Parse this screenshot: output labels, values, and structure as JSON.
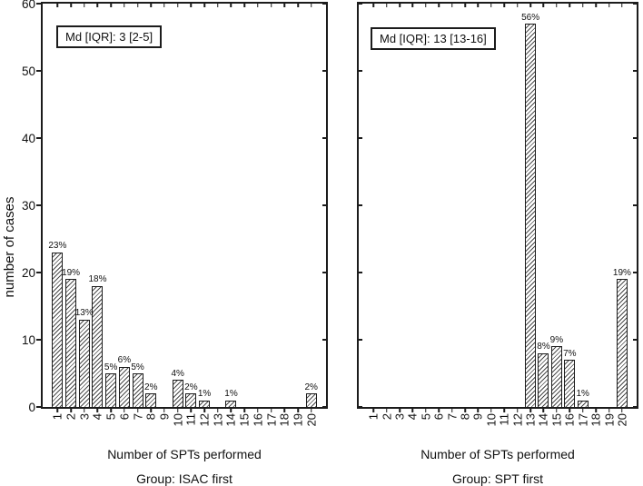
{
  "figure": {
    "ylabel": "number of cases",
    "colors": {
      "background": "#ffffff",
      "axis": "#1c1c1c",
      "text": "#111111",
      "bar_fill": "#ffffff",
      "hatch_line": "#4a4a4a"
    }
  },
  "chart_data": [
    {
      "type": "bar",
      "title": "Group: ISAC first",
      "annotation": "Md [IQR]: 3 [2-5]",
      "xlabel": "Number of SPTs performed",
      "ylabel": "number of cases",
      "categories": [
        "1",
        "2",
        "3",
        "4",
        "5",
        "6",
        "7",
        "8",
        "9",
        "10",
        "11",
        "12",
        "13",
        "14",
        "15",
        "16",
        "17",
        "18",
        "19",
        "20"
      ],
      "values": [
        23,
        19,
        13,
        18,
        5,
        6,
        5,
        2,
        0,
        4,
        2,
        1,
        0,
        1,
        0,
        0,
        0,
        0,
        0,
        2
      ],
      "bar_labels": [
        "23%",
        "19%",
        "13%",
        "18%",
        "5%",
        "6%",
        "5%",
        "2%",
        "",
        "4%",
        "2%",
        "1%",
        "",
        "1%",
        "",
        "",
        "",
        "",
        "",
        "2%"
      ],
      "ylim": [
        0,
        60
      ],
      "yticks": [
        0,
        10,
        20,
        30,
        40,
        50,
        60
      ],
      "show_ytick_labels": true,
      "grid": false,
      "hatch": "diagonal"
    },
    {
      "type": "bar",
      "title": "Group: SPT first",
      "annotation": "Md [IQR]: 13 [13-16]",
      "xlabel": "Number of SPTs performed",
      "ylabel": "number of cases",
      "categories": [
        "1",
        "2",
        "3",
        "4",
        "5",
        "6",
        "7",
        "8",
        "9",
        "10",
        "11",
        "12",
        "13",
        "14",
        "15",
        "16",
        "17",
        "18",
        "19",
        "20"
      ],
      "values": [
        0,
        0,
        0,
        0,
        0,
        0,
        0,
        0,
        0,
        0,
        0,
        0,
        57,
        8,
        9,
        7,
        1,
        0,
        0,
        19
      ],
      "bar_labels": [
        "",
        "",
        "",
        "",
        "",
        "",
        "",
        "",
        "",
        "",
        "",
        "",
        "56%",
        "8%",
        "9%",
        "7%",
        "1%",
        "",
        "",
        "19%"
      ],
      "ylim": [
        0,
        60
      ],
      "yticks": [
        0,
        10,
        20,
        30,
        40,
        50,
        60
      ],
      "show_ytick_labels": false,
      "grid": false,
      "hatch": "diagonal"
    }
  ]
}
